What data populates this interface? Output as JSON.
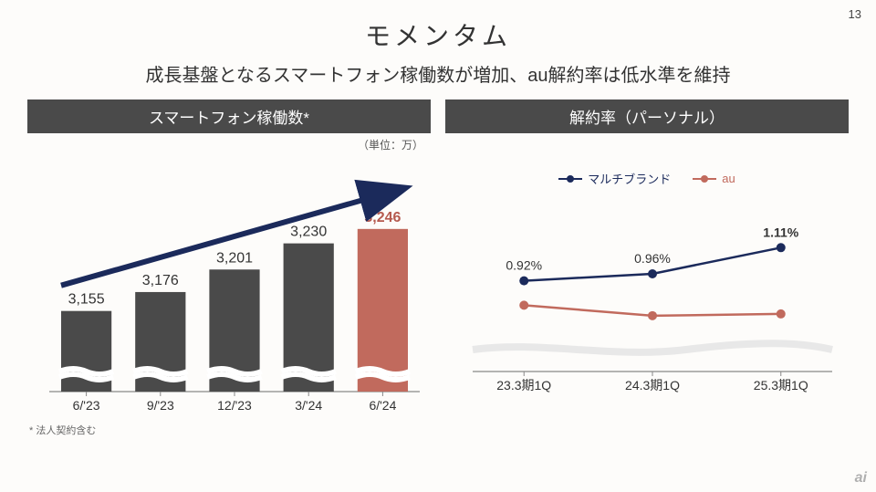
{
  "page_number": "13",
  "title": "モメンタム",
  "subtitle": "成長基盤となるスマートフォン稼働数が増加、au解約率は低水準を維持",
  "footnote": "* 法人契約含む",
  "watermark": "ai",
  "left_panel": {
    "header": "スマートフォン稼働数*",
    "unit": "（単位：万）",
    "type": "bar",
    "categories": [
      "6/'23",
      "9/'23",
      "12/'23",
      "3/'24",
      "6/'24"
    ],
    "values": [
      3155,
      3176,
      3201,
      3230,
      3246
    ],
    "value_labels": [
      "3,155",
      "3,176",
      "3,201",
      "3,230",
      "3,246"
    ],
    "bar_colors": [
      "#4a4a4a",
      "#4a4a4a",
      "#4a4a4a",
      "#4a4a4a",
      "#c16a5d"
    ],
    "highlight_index": 4,
    "arrow_color": "#1b2a5b",
    "axis_color": "#888",
    "break_color": "#ffffff",
    "ylim_display": [
      3100,
      3260
    ],
    "bar_width": 0.68
  },
  "right_panel": {
    "header": "解約率（パーソナル）",
    "type": "line",
    "legend": [
      {
        "name": "マルチブランド",
        "color": "#1b2a5b"
      },
      {
        "name": "au",
        "color": "#c16a5d"
      }
    ],
    "categories": [
      "23.3期1Q",
      "24.3期1Q",
      "25.3期1Q"
    ],
    "series": [
      {
        "name": "マルチブランド",
        "color": "#1b2a5b",
        "values": [
          0.92,
          0.96,
          1.11
        ],
        "labels": [
          "0.92%",
          "0.96%",
          "1.11%"
        ]
      },
      {
        "name": "au",
        "color": "#c16a5d",
        "values": [
          0.78,
          0.72,
          0.73
        ],
        "labels": [
          "",
          "",
          ""
        ]
      }
    ],
    "ylim": [
      0.4,
      1.3
    ],
    "axis_color": "#888",
    "break_color": "#e8e8e8",
    "line_width": 2.5,
    "marker_size": 5
  },
  "colors": {
    "bg": "#fdfcfa",
    "header_bg": "#4a4a4a",
    "header_text": "#ffffff",
    "text": "#333333"
  }
}
